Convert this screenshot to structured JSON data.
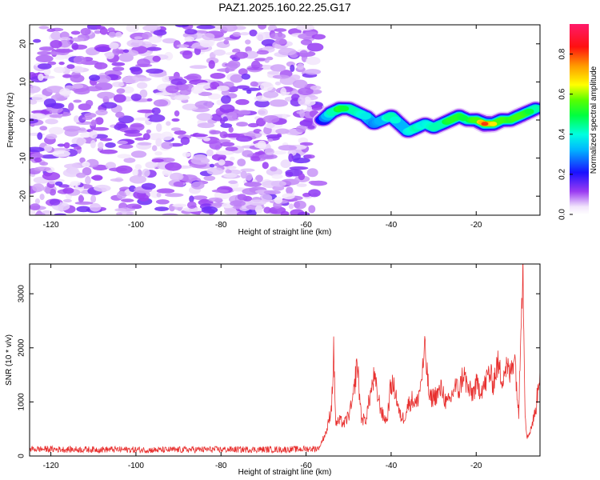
{
  "title": "PAZ1.2025.160.22.25.G17",
  "chart_data": [
    {
      "type": "heatmap",
      "title": "PAZ1.2025.160.22.25.G17",
      "xlabel": "Height of straight line (km)",
      "ylabel": "Frequency (Hz)",
      "xlim": [
        -125,
        -5
      ],
      "ylim": [
        -25,
        25
      ],
      "x_ticks": [
        -120,
        -100,
        -80,
        -60,
        -40,
        -20
      ],
      "y_ticks": [
        -20,
        -10,
        0,
        10,
        20
      ],
      "colorbar": {
        "label": "Normalized spectral amplitude",
        "range": [
          0.0,
          0.95
        ],
        "ticks": [
          "0.0",
          "0.2",
          "0.4",
          "0.6",
          "0.8"
        ],
        "colormap": "rainbow (white - purple - blue - cyan - green - yellow - orange - red - magenta)"
      },
      "noise_region": {
        "x_range": [
          -125,
          -57
        ],
        "amplitude_range": [
          0.0,
          0.15
        ],
        "frequency_range": [
          -25,
          25
        ]
      },
      "signal_ridge": {
        "x": [
          -56,
          -54,
          -52,
          -50,
          -48,
          -46,
          -44,
          -42,
          -40,
          -38,
          -36,
          -34,
          -32,
          -30,
          -28,
          -26,
          -24,
          -22,
          -20,
          -18,
          -16,
          -14,
          -12,
          -10,
          -8,
          -6
        ],
        "frequency": [
          0,
          2,
          3,
          3,
          2,
          1,
          -1,
          0,
          1,
          -1,
          -3,
          -2,
          -1,
          -2,
          -1,
          0,
          1,
          0,
          0,
          -1,
          -1,
          0,
          0,
          1,
          2,
          3
        ],
        "amplitude": [
          0.25,
          0.45,
          0.55,
          0.5,
          0.45,
          0.4,
          0.3,
          0.35,
          0.5,
          0.35,
          0.4,
          0.45,
          0.4,
          0.45,
          0.5,
          0.55,
          0.55,
          0.5,
          0.6,
          0.85,
          0.7,
          0.6,
          0.55,
          0.6,
          0.55,
          0.45
        ]
      },
      "grid": false
    },
    {
      "type": "line",
      "xlabel": "Height of straight line (km)",
      "ylabel": "SNR (10 * v/v)",
      "xlim": [
        -125,
        -5
      ],
      "ylim": [
        0,
        3550
      ],
      "x_ticks": [
        -120,
        -100,
        -80,
        -60,
        -40,
        -20
      ],
      "y_ticks": [
        0,
        1000,
        2000,
        3000
      ],
      "color": "#e8302f",
      "series": [
        {
          "x": [
            -125,
            -115,
            -105,
            -95,
            -85,
            -75,
            -65,
            -60,
            -57,
            -55,
            -54,
            -53.5,
            -53,
            -52,
            -51,
            -50,
            -49,
            -48,
            -47,
            -46,
            -45,
            -44,
            -43,
            -42,
            -41,
            -40,
            -39,
            -38,
            -37,
            -36,
            -35,
            -34,
            -33,
            -32,
            -31,
            -30,
            -29,
            -28,
            -27,
            -26,
            -25,
            -24,
            -23,
            -22,
            -21,
            -20,
            -19,
            -18,
            -17,
            -16,
            -15,
            -14,
            -13,
            -12,
            -11,
            -10,
            -9.5,
            -9,
            -8.5,
            -8,
            -7,
            -6,
            -5
          ],
          "values": [
            130,
            120,
            120,
            110,
            120,
            120,
            120,
            130,
            140,
            500,
            950,
            1900,
            600,
            650,
            600,
            750,
            1000,
            1750,
            700,
            650,
            1100,
            1450,
            1050,
            750,
            650,
            1350,
            1200,
            750,
            700,
            950,
            1050,
            950,
            1350,
            1950,
            1050,
            1100,
            1150,
            1250,
            950,
            1050,
            1300,
            1200,
            1550,
            1250,
            1150,
            1300,
            1250,
            1300,
            1550,
            1350,
            1700,
            1450,
            1650,
            1500,
            1950,
            700,
            2700,
            3500,
            800,
            320,
            550,
            850,
            1600
          ]
        }
      ],
      "grid": false
    }
  ]
}
